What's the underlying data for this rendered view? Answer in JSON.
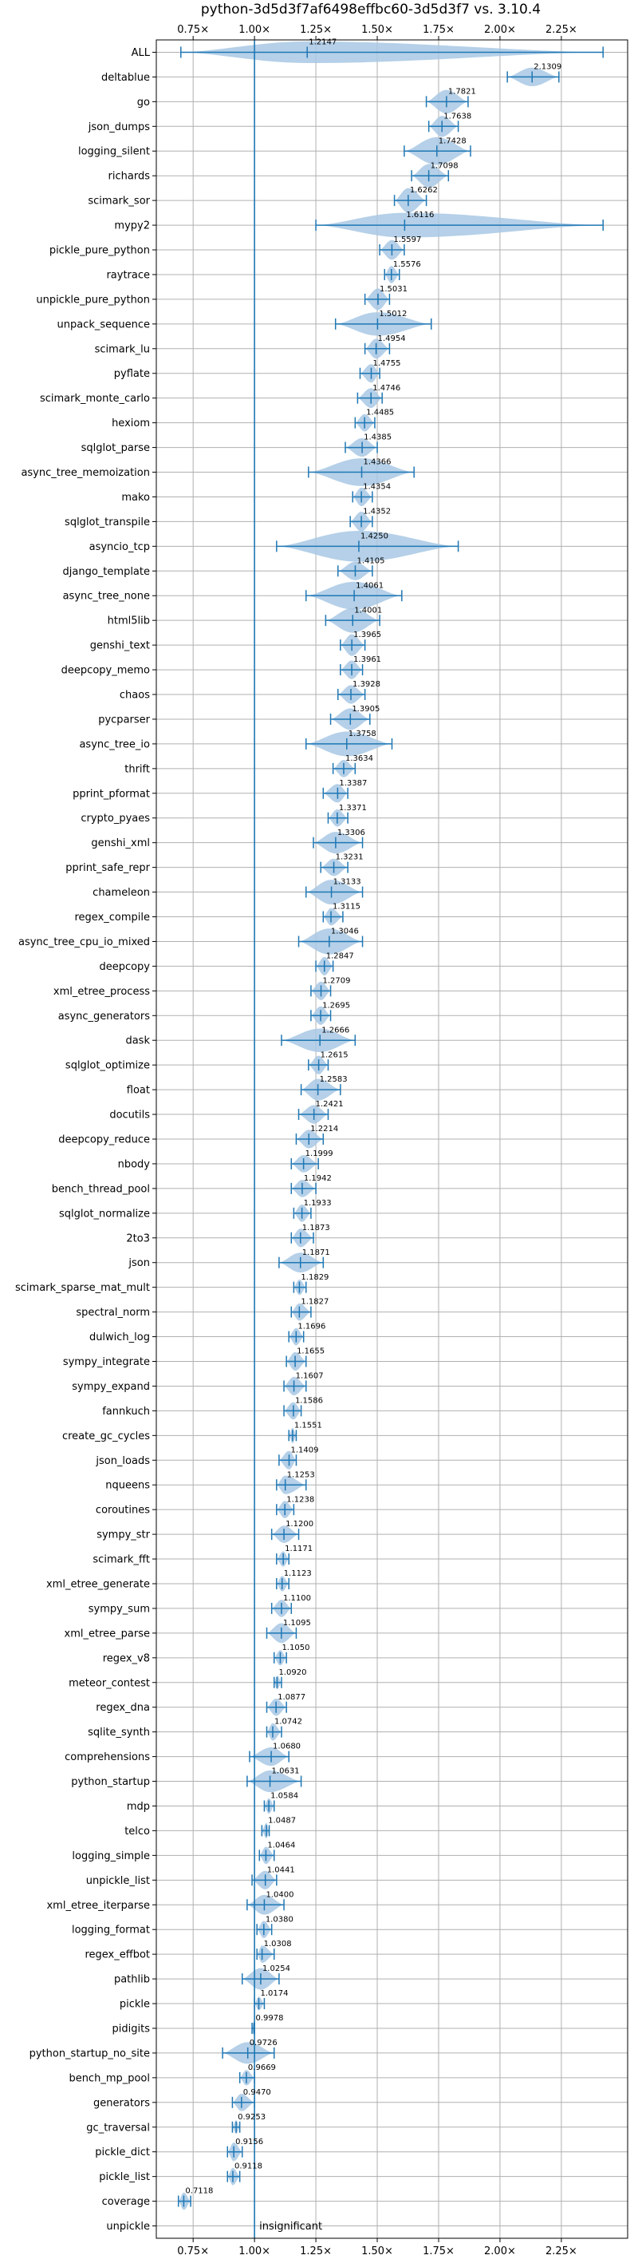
{
  "chart_data": {
    "type": "violin",
    "title": "python-3d5d3f7af6498effbc60-3d5d3f7 vs. 3.10.4",
    "orientation": "horizontal",
    "xlabel": "",
    "ylabel": "",
    "xlim": [
      0.6,
      2.52
    ],
    "xticks": [
      0.75,
      1.0,
      1.25,
      1.5,
      1.75,
      2.0,
      2.25
    ],
    "xtick_labels": [
      "0.75×",
      "1.00×",
      "1.25×",
      "1.50×",
      "1.75×",
      "2.00×",
      "2.25×"
    ],
    "grid": true,
    "colors": {
      "accent": "#1f77b4",
      "violin": "#a8c8e4",
      "grid": "#b0b0b0"
    },
    "reference_line": 1.0,
    "note": "insignificant",
    "categories": [
      "ALL",
      "deltablue",
      "go",
      "json_dumps",
      "logging_silent",
      "richards",
      "scimark_sor",
      "mypy2",
      "pickle_pure_python",
      "raytrace",
      "unpickle_pure_python",
      "unpack_sequence",
      "scimark_lu",
      "pyflate",
      "scimark_monte_carlo",
      "hexiom",
      "sqlglot_parse",
      "async_tree_memoization",
      "mako",
      "sqlglot_transpile",
      "asyncio_tcp",
      "django_template",
      "async_tree_none",
      "html5lib",
      "genshi_text",
      "deepcopy_memo",
      "chaos",
      "pycparser",
      "async_tree_io",
      "thrift",
      "pprint_pformat",
      "crypto_pyaes",
      "genshi_xml",
      "pprint_safe_repr",
      "chameleon",
      "regex_compile",
      "async_tree_cpu_io_mixed",
      "deepcopy",
      "xml_etree_process",
      "async_generators",
      "dask",
      "sqlglot_optimize",
      "float",
      "docutils",
      "deepcopy_reduce",
      "nbody",
      "bench_thread_pool",
      "sqlglot_normalize",
      "2to3",
      "json",
      "scimark_sparse_mat_mult",
      "spectral_norm",
      "dulwich_log",
      "sympy_integrate",
      "sympy_expand",
      "fannkuch",
      "create_gc_cycles",
      "json_loads",
      "nqueens",
      "coroutines",
      "sympy_str",
      "scimark_fft",
      "xml_etree_generate",
      "sympy_sum",
      "xml_etree_parse",
      "regex_v8",
      "meteor_contest",
      "regex_dna",
      "sqlite_synth",
      "comprehensions",
      "python_startup",
      "mdp",
      "telco",
      "logging_simple",
      "unpickle_list",
      "xml_etree_iterparse",
      "logging_format",
      "regex_effbot",
      "pathlib",
      "pickle",
      "pidigits",
      "python_startup_no_site",
      "bench_mp_pool",
      "generators",
      "gc_traversal",
      "pickle_dict",
      "pickle_list",
      "coverage",
      "unpickle"
    ],
    "medians": [
      1.2147,
      2.1309,
      1.7821,
      1.7638,
      1.7428,
      1.7098,
      1.6262,
      1.6116,
      1.5597,
      1.5576,
      1.5031,
      1.5012,
      1.4954,
      1.4755,
      1.4746,
      1.4485,
      1.4385,
      1.4366,
      1.4354,
      1.4352,
      1.425,
      1.4105,
      1.4061,
      1.4001,
      1.3965,
      1.3961,
      1.3928,
      1.3905,
      1.3758,
      1.3634,
      1.3387,
      1.3371,
      1.3306,
      1.3231,
      1.3133,
      1.3115,
      1.3046,
      1.2847,
      1.2709,
      1.2695,
      1.2666,
      1.2615,
      1.2583,
      1.2421,
      1.2214,
      1.1999,
      1.1942,
      1.1933,
      1.1873,
      1.1871,
      1.1829,
      1.1827,
      1.1696,
      1.1655,
      1.1607,
      1.1586,
      1.1551,
      1.1409,
      1.1253,
      1.1238,
      1.12,
      1.1171,
      1.1123,
      1.11,
      1.1095,
      1.105,
      1.092,
      1.0877,
      1.0742,
      1.068,
      1.0631,
      1.0584,
      1.0487,
      1.0464,
      1.0441,
      1.04,
      1.038,
      1.0308,
      1.0254,
      1.0174,
      0.9978,
      0.9726,
      0.9669,
      0.947,
      0.9253,
      0.9156,
      0.9118,
      0.7118,
      null
    ],
    "median_labels": [
      "1.2147",
      "2.1309",
      "1.7821",
      "1.7638",
      "1.7428",
      "1.7098",
      "1.6262",
      "1.6116",
      "1.5597",
      "1.5576",
      "1.5031",
      "1.5012",
      "1.4954",
      "1.4755",
      "1.4746",
      "1.4485",
      "1.4385",
      "1.4366",
      "1.4354",
      "1.4352",
      "1.4250",
      "1.4105",
      "1.4061",
      "1.4001",
      "1.3965",
      "1.3961",
      "1.3928",
      "1.3905",
      "1.3758",
      "1.3634",
      "1.3387",
      "1.3371",
      "1.3306",
      "1.3231",
      "1.3133",
      "1.3115",
      "1.3046",
      "1.2847",
      "1.2709",
      "1.2695",
      "1.2666",
      "1.2615",
      "1.2583",
      "1.2421",
      "1.2214",
      "1.1999",
      "1.1942",
      "1.1933",
      "1.1873",
      "1.1871",
      "1.1829",
      "1.1827",
      "1.1696",
      "1.1655",
      "1.1607",
      "1.1586",
      "1.1551",
      "1.1409",
      "1.1253",
      "1.1238",
      "1.1200",
      "1.1171",
      "1.1123",
      "1.1100",
      "1.1095",
      "1.1050",
      "1.0920",
      "1.0877",
      "1.0742",
      "1.0680",
      "1.0631",
      "1.0584",
      "1.0487",
      "1.0464",
      "1.0441",
      "1.0400",
      "1.0380",
      "1.0308",
      "1.0254",
      "1.0174",
      "0.9978",
      "0.9726",
      "0.9669",
      "0.9470",
      "0.9253",
      "0.9156",
      "0.9118",
      "0.7118",
      ""
    ],
    "mins": [
      0.7,
      2.03,
      1.7,
      1.71,
      1.61,
      1.64,
      1.57,
      1.25,
      1.51,
      1.53,
      1.45,
      1.33,
      1.45,
      1.43,
      1.42,
      1.41,
      1.37,
      1.22,
      1.4,
      1.39,
      1.09,
      1.34,
      1.21,
      1.29,
      1.35,
      1.35,
      1.34,
      1.31,
      1.21,
      1.32,
      1.28,
      1.3,
      1.24,
      1.27,
      1.21,
      1.28,
      1.18,
      1.25,
      1.23,
      1.23,
      1.11,
      1.22,
      1.19,
      1.18,
      1.17,
      1.15,
      1.15,
      1.16,
      1.15,
      1.1,
      1.16,
      1.15,
      1.14,
      1.13,
      1.12,
      1.12,
      1.14,
      1.1,
      1.09,
      1.09,
      1.07,
      1.09,
      1.09,
      1.07,
      1.05,
      1.08,
      1.08,
      1.05,
      1.05,
      0.98,
      0.97,
      1.04,
      1.03,
      1.02,
      0.99,
      0.97,
      1.01,
      1.01,
      0.95,
      1.0,
      0.99,
      0.87,
      0.94,
      0.91,
      0.91,
      0.89,
      0.89,
      0.69,
      null
    ],
    "maxs": [
      2.42,
      2.24,
      1.87,
      1.83,
      1.88,
      1.79,
      1.7,
      2.42,
      1.61,
      1.59,
      1.55,
      1.72,
      1.55,
      1.51,
      1.52,
      1.49,
      1.5,
      1.65,
      1.48,
      1.48,
      1.83,
      1.48,
      1.6,
      1.51,
      1.45,
      1.44,
      1.45,
      1.47,
      1.56,
      1.41,
      1.38,
      1.38,
      1.44,
      1.38,
      1.44,
      1.36,
      1.44,
      1.32,
      1.31,
      1.31,
      1.41,
      1.3,
      1.35,
      1.3,
      1.28,
      1.26,
      1.25,
      1.23,
      1.24,
      1.28,
      1.21,
      1.23,
      1.2,
      1.21,
      1.21,
      1.19,
      1.17,
      1.17,
      1.21,
      1.16,
      1.18,
      1.14,
      1.14,
      1.15,
      1.17,
      1.13,
      1.11,
      1.13,
      1.11,
      1.14,
      1.19,
      1.08,
      1.06,
      1.08,
      1.09,
      1.12,
      1.07,
      1.08,
      1.1,
      1.04,
      1.0,
      1.08,
      1.0,
      1.0,
      0.94,
      0.95,
      0.94,
      0.74,
      null
    ],
    "widths": [
      0.35,
      0.3,
      0.38,
      0.34,
      0.45,
      0.38,
      0.4,
      0.4,
      0.32,
      0.28,
      0.35,
      0.38,
      0.32,
      0.3,
      0.32,
      0.28,
      0.3,
      0.45,
      0.3,
      0.32,
      0.5,
      0.3,
      0.45,
      0.4,
      0.35,
      0.3,
      0.3,
      0.35,
      0.4,
      0.28,
      0.3,
      0.28,
      0.35,
      0.28,
      0.4,
      0.28,
      0.42,
      0.3,
      0.3,
      0.3,
      0.38,
      0.3,
      0.35,
      0.3,
      0.3,
      0.28,
      0.28,
      0.28,
      0.3,
      0.32,
      0.25,
      0.28,
      0.28,
      0.3,
      0.3,
      0.28,
      0.25,
      0.3,
      0.3,
      0.28,
      0.28,
      0.25,
      0.25,
      0.28,
      0.32,
      0.25,
      0.22,
      0.28,
      0.28,
      0.3,
      0.35,
      0.25,
      0.25,
      0.28,
      0.3,
      0.32,
      0.28,
      0.28,
      0.35,
      0.22,
      0.22,
      0.35,
      0.25,
      0.28,
      0.22,
      0.3,
      0.28,
      0.28,
      0.0
    ]
  }
}
